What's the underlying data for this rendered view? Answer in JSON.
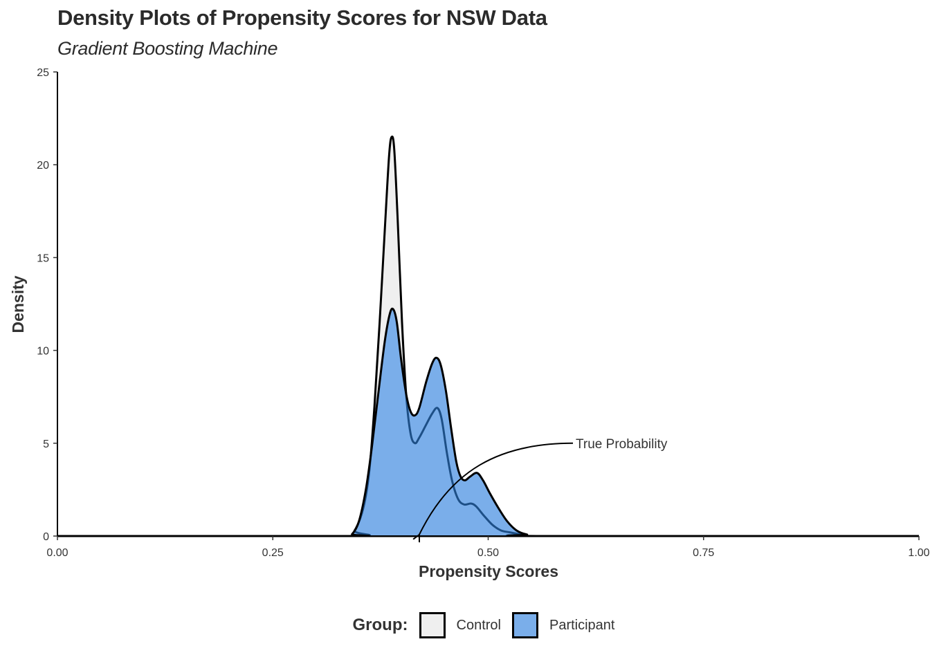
{
  "chart_data": {
    "type": "area",
    "title": "Density Plots of Propensity Scores for NSW Data",
    "subtitle": "Gradient Boosting Machine",
    "xlabel": "Propensity Scores",
    "ylabel": "Density",
    "xlim": [
      0,
      1
    ],
    "ylim": [
      0,
      25
    ],
    "x_ticks": [
      0,
      0.25,
      0.5,
      0.75,
      1
    ],
    "x_tick_labels": [
      "0.00",
      "0.25",
      "0.50",
      "0.75",
      "1.00"
    ],
    "y_ticks": [
      0,
      5,
      10,
      15,
      20,
      25
    ],
    "y_tick_labels": [
      "0",
      "5",
      "10",
      "15",
      "20",
      "25"
    ],
    "grid": false,
    "legend": {
      "title": "Group:",
      "placement": "bottom"
    },
    "series": [
      {
        "name": "Control",
        "color": "#efefef",
        "x": [
          0,
          0.335,
          0.345,
          0.355,
          0.362,
          0.368,
          0.374,
          0.38,
          0.385,
          0.388,
          0.391,
          0.395,
          0.4,
          0.405,
          0.41,
          0.415,
          0.42,
          0.428,
          0.435,
          0.441,
          0.446,
          0.452,
          0.458,
          0.465,
          0.472,
          0.48,
          0.486,
          0.495,
          0.505,
          0.515,
          0.525,
          0.54,
          0.56,
          1
        ],
        "y": [
          0,
          0,
          0.3,
          1.5,
          3.5,
          7,
          11.5,
          16.5,
          20.5,
          21.5,
          20.8,
          17,
          11.5,
          7.5,
          5.5,
          5.0,
          5.3,
          6.0,
          6.6,
          6.9,
          6.3,
          4.5,
          3.0,
          2.0,
          1.7,
          1.75,
          1.6,
          1.1,
          0.6,
          0.3,
          0.2,
          0.08,
          0,
          0
        ]
      },
      {
        "name": "Participant",
        "color": "#7aaeea",
        "x": [
          0,
          0.335,
          0.342,
          0.35,
          0.358,
          0.365,
          0.372,
          0.38,
          0.386,
          0.39,
          0.394,
          0.399,
          0.405,
          0.41,
          0.415,
          0.42,
          0.428,
          0.435,
          0.44,
          0.445,
          0.451,
          0.457,
          0.463,
          0.468,
          0.473,
          0.479,
          0.487,
          0.494,
          0.502,
          0.512,
          0.522,
          0.533,
          0.545,
          0.56,
          1
        ],
        "y": [
          0,
          0,
          0.1,
          0.8,
          2.5,
          4.8,
          7.5,
          10.5,
          12.0,
          12.2,
          11.5,
          9.5,
          7.6,
          6.7,
          6.5,
          6.9,
          8.3,
          9.3,
          9.6,
          9.2,
          7.8,
          5.8,
          4.0,
          3.2,
          3.0,
          3.2,
          3.4,
          3.0,
          2.3,
          1.5,
          0.8,
          0.3,
          0.08,
          0,
          0
        ]
      }
    ],
    "annotations": [
      {
        "text": "True Probability",
        "x": 0.6,
        "y": 5,
        "arrow_to": [
          0.42,
          0
        ]
      }
    ]
  }
}
